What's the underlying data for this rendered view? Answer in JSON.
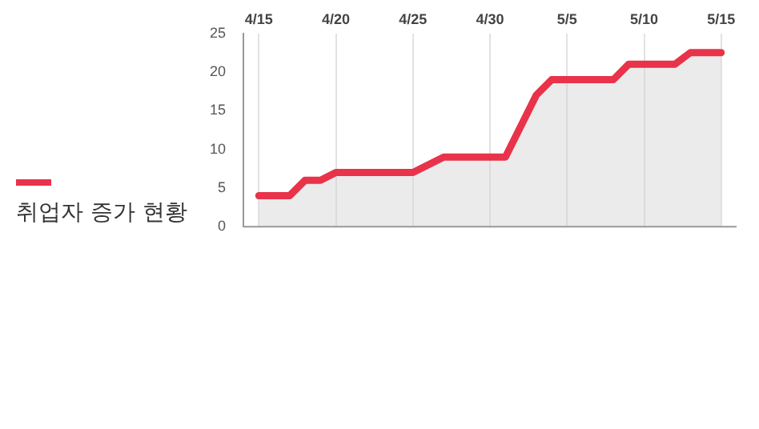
{
  "chart_data": {
    "type": "area",
    "title": "취업자 증가 현황",
    "x": [
      "--04-15",
      "--04-17",
      "--04-18",
      "--04-19",
      "--04-20",
      "--04-25",
      "--04-27",
      "--05-01",
      "--05-03",
      "--05-04",
      "--05-08",
      "--05-09",
      "--05-12",
      "--05-13",
      "--05-15"
    ],
    "series": [
      {
        "color": "#e8334a",
        "values": [
          4,
          4,
          6,
          6,
          7,
          7,
          9,
          9,
          17,
          19,
          19,
          21,
          21,
          22.5,
          22.5
        ]
      }
    ],
    "xlim": [
      "--04-14",
      "--05-16"
    ],
    "xticks": [
      {
        "value": "--04-15",
        "label": "4/15"
      },
      {
        "value": "--04-20",
        "label": "4/20"
      },
      {
        "value": "--04-25",
        "label": "4/25"
      },
      {
        "value": "--04-30",
        "label": "4/30"
      },
      {
        "value": "--05-05",
        "label": "5/5"
      },
      {
        "value": "--05-10",
        "label": "5/10"
      },
      {
        "value": "--05-15",
        "label": "5/15"
      }
    ],
    "ylim": [
      0,
      25
    ],
    "yticks": [
      0,
      5,
      10,
      15,
      20,
      25
    ],
    "grid": "x",
    "legend": false
  }
}
